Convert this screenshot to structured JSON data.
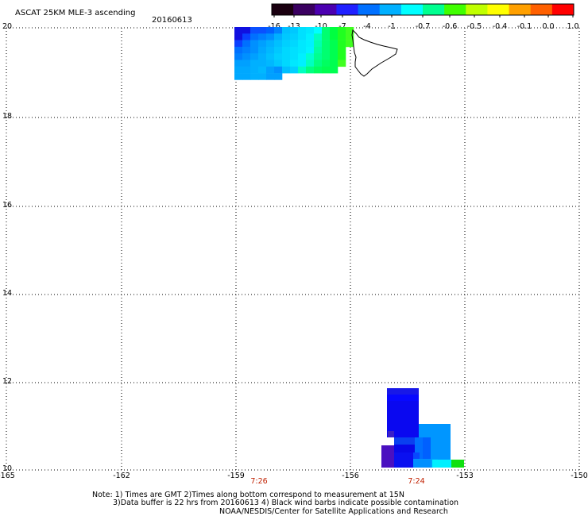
{
  "header": {
    "title": "ASCAT 25KM MLE-3 ascending",
    "date": "20160613"
  },
  "colorbar": {
    "labels": [
      "-16",
      "-13",
      "-10",
      "-7",
      "-4",
      "-1",
      "-0.7",
      "-0.6",
      "-0.5",
      "-0.4",
      "-0.1",
      "0.0",
      "1.0"
    ],
    "colors": [
      "#1a0010",
      "#3a0060",
      "#4b00b0",
      "#2020ff",
      "#0070ff",
      "#00b0ff",
      "#00ffff",
      "#00ff90",
      "#40ff00",
      "#c0ff00",
      "#ffff00",
      "#ffa000",
      "#ff6000",
      "#ff0000"
    ]
  },
  "map": {
    "lon_labels": [
      "-165",
      "-162",
      "-159",
      "-156",
      "-153",
      "-150"
    ],
    "lat_labels": [
      "20",
      "18",
      "16",
      "14",
      "12",
      "10"
    ],
    "pass_times": [
      "7:26",
      "7:24"
    ]
  },
  "footer": {
    "line1": "Note: 1) Times are GMT 2)Times along bottom correspond to measurement at 15N",
    "line2": "3)Data buffer is 22 hrs from 20160613 4) Black wind barbs indicate possible contamination",
    "line3": "NOAA/NESDIS/Center for Satellite Applications and Research"
  }
}
